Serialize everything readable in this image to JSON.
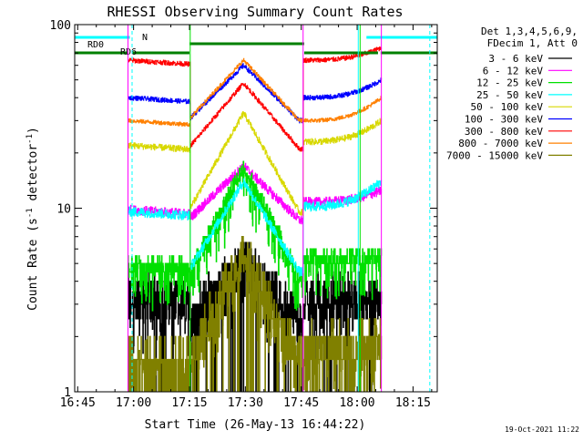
{
  "chart_data": {
    "type": "line",
    "title": "RHESSI Observing Summary Count Rates",
    "xlabel": "Start Time (26-May-13 16:44:22)",
    "ylabel_main": "Count Rate (s",
    "ylabel_sup1": "-1",
    "ylabel_mid": " detector",
    "ylabel_sup2": "-1",
    "ylabel_end": ")",
    "x_unit": "minutes since 16:45",
    "xlim": [
      -0.8,
      96.5
    ],
    "ylim": [
      1,
      100
    ],
    "yscale": "log",
    "x_ticks": [
      {
        "v": 0,
        "label": "16:45"
      },
      {
        "v": 15,
        "label": "17:00"
      },
      {
        "v": 30,
        "label": "17:15"
      },
      {
        "v": 45,
        "label": "17:30"
      },
      {
        "v": 60,
        "label": "17:45"
      },
      {
        "v": 75,
        "label": "18:00"
      },
      {
        "v": 90,
        "label": "18:15"
      }
    ],
    "y_ticks": [
      {
        "v": 1,
        "label": "1"
      },
      {
        "v": 10,
        "label": "10"
      },
      {
        "v": 100,
        "label": "100"
      }
    ],
    "legend": {
      "placement": "top-right outside",
      "header": [
        "Det 1,3,4,5,6,9,",
        "FDecim 1, Att 0"
      ]
    },
    "segments": [
      [
        13.5,
        30.2
      ],
      [
        30.2,
        60.5
      ],
      [
        60.5,
        81.5
      ]
    ],
    "series": [
      {
        "name": "3 - 6 keV",
        "color": "#000000",
        "noise": 0.28,
        "quant": true,
        "base": [
          3.3,
          0,
          3.3
        ],
        "start": 3.3,
        "peak": 5.2,
        "end": 3.3,
        "mid_base": 2.6,
        "fill": true
      },
      {
        "name": "6 - 12 keV",
        "color": "#ff00ff",
        "noise": 0.06,
        "quant": false,
        "base": [
          9.8,
          0,
          10.8
        ],
        "start": 9.8,
        "peak": 17,
        "end": 12.5,
        "mid_base": 8.6,
        "fill": false
      },
      {
        "name": "12 - 25 keV",
        "color": "#00e000",
        "noise": 0.1,
        "quant": true,
        "base": [
          5.4,
          0,
          5.4
        ],
        "start": 5.0,
        "peak": 17,
        "end": 5.4,
        "mid_base": 4.3,
        "fill": true
      },
      {
        "name": "25 - 50 keV",
        "color": "#00ffff",
        "noise": 0.06,
        "quant": false,
        "base": [
          9.6,
          0,
          10.2
        ],
        "start": 9.6,
        "peak": 14,
        "end": 14,
        "mid_base": 4.5,
        "fill": false
      },
      {
        "name": "50 - 100 keV",
        "color": "#d8d800",
        "noise": 0.04,
        "quant": false,
        "base": [
          22,
          0,
          23
        ],
        "start": 22,
        "peak": 33,
        "end": 30,
        "mid_base": 9.5,
        "fill": false
      },
      {
        "name": "100 - 300 keV",
        "color": "#0000ff",
        "noise": 0.03,
        "quant": false,
        "base": [
          40,
          0,
          40
        ],
        "start": 40,
        "peak": 60,
        "end": 50,
        "mid_base": 30,
        "fill": false
      },
      {
        "name": "300 - 800 keV",
        "color": "#ff0000",
        "noise": 0.03,
        "quant": false,
        "base": [
          64,
          0,
          64
        ],
        "start": 64,
        "peak": 48,
        "end": 75,
        "mid_base": 21,
        "fill": false
      },
      {
        "name": "800 - 7000 keV",
        "color": "#ff8000",
        "noise": 0.025,
        "quant": false,
        "base": [
          30,
          0,
          30
        ],
        "start": 30,
        "peak": 64,
        "end": 40,
        "mid_base": 30,
        "fill": false
      },
      {
        "name": "7000 - 15000 keV",
        "color": "#808000",
        "noise": 0.3,
        "quant": true,
        "base": [
          1.7,
          0,
          1.7
        ],
        "start": 1.5,
        "peak": 5.6,
        "end": 1.8,
        "mid_base": 1.5,
        "fill": true
      }
    ],
    "flags": {
      "color_green": "#008000",
      "color_cyan": "#00ffff",
      "saa_green": [
        [
          -0.8,
          13.3
        ],
        [
          14.8,
          30.0
        ],
        [
          60.8,
          80.6
        ],
        [
          81.3,
          96.5
        ]
      ],
      "n_cyan": [
        [
          -0.8,
          14.0
        ],
        [
          77.5,
          96.5
        ]
      ],
      "rd0": [
        30.0,
        60.8
      ],
      "rd0_label": "RD0",
      "rd6_label": "RD6",
      "n_label": "N",
      "vlines_solid": [
        13.5,
        30.2,
        60.5,
        75.8,
        81.5
      ],
      "vlines_dashed": [
        14.6,
        94.5
      ],
      "vline_solid_cyan": 75.3
    },
    "timestamp": "19-Oct-2021 11:22"
  }
}
